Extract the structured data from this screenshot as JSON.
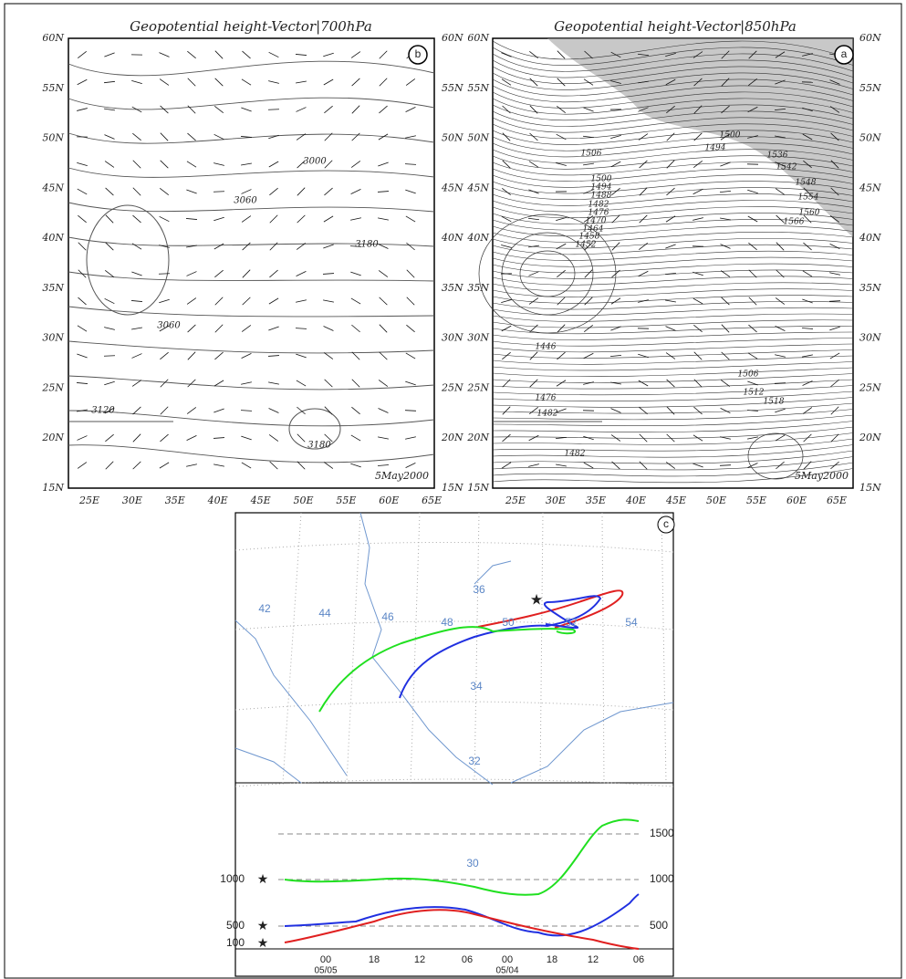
{
  "panel_b": {
    "title": "Geopotential height-Vector|700hPa",
    "label": "b",
    "date": "5May2000",
    "lat_labels": [
      "60N",
      "55N",
      "50N",
      "45N",
      "40N",
      "35N",
      "30N",
      "25N",
      "20N",
      "15N"
    ],
    "lon_labels": [
      "25E",
      "30E",
      "35E",
      "40E",
      "45E",
      "50E",
      "55E",
      "60E",
      "65E"
    ],
    "contour_labels": [
      "3000",
      "3060",
      "3180",
      "3060",
      "3120",
      "3180"
    ]
  },
  "panel_a": {
    "title": "Geopotential height-Vector|850hPa",
    "label": "a",
    "date": "5May2000",
    "lat_labels": [
      "60N",
      "55N",
      "50N",
      "45N",
      "40N",
      "35N",
      "30N",
      "25N",
      "20N",
      "15N"
    ],
    "lon_labels": [
      "25E",
      "30E",
      "35E",
      "40E",
      "45E",
      "50E",
      "55E",
      "60E",
      "65E"
    ],
    "contour_labels": [
      "1506",
      "1500",
      "1494",
      "1488",
      "1482",
      "1476",
      "1470",
      "1464",
      "1458",
      "1452",
      "1446",
      "1476",
      "1482",
      "1482",
      "1500",
      "1494",
      "1536",
      "1542",
      "1548",
      "1554",
      "1560",
      "1566",
      "1506",
      "1512",
      "1518"
    ]
  },
  "panel_c": {
    "label": "c",
    "lon_labels": [
      "42",
      "44",
      "46",
      "48",
      "50",
      "52",
      "54"
    ],
    "lat_labels": [
      "36",
      "34",
      "32",
      "30"
    ],
    "height_left": [
      "1000",
      "500",
      "100"
    ],
    "height_right": [
      "1500",
      "1000",
      "500"
    ],
    "time_ticks": [
      "00",
      "18",
      "12",
      "06",
      "00",
      "18",
      "12",
      "06"
    ],
    "dates": [
      "05/05",
      "05/04"
    ]
  }
}
